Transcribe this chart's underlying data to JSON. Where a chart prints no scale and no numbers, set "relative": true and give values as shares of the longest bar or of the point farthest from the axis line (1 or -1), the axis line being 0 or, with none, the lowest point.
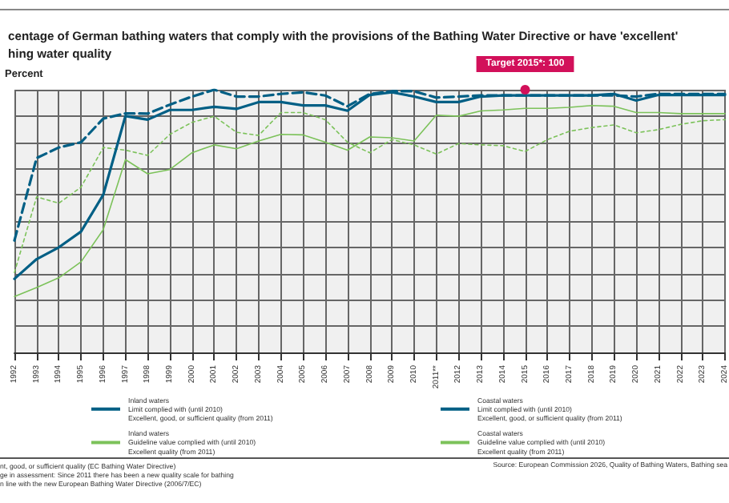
{
  "chart_data": {
    "type": "line",
    "relative": true,
    "title": "centage of German bathing waters that comply with the provisions of the Bathing Water Directive or have 'excellent'\nhing water quality",
    "ylabel": "Percent",
    "categories": [
      "1992",
      "1993",
      "1994",
      "1995",
      "1996",
      "1997",
      "1998",
      "1999",
      "2000",
      "2001",
      "2002",
      "2003",
      "2004",
      "2005",
      "2006",
      "2007",
      "2008",
      "2009",
      "2010",
      "2011**",
      "2012",
      "2013",
      "2014",
      "2015",
      "2016",
      "2017",
      "2018",
      "2019",
      "2020",
      "2021",
      "2022",
      "2023",
      "2024"
    ],
    "series": [
      {
        "name": "Inland waters\nLimit complied with (until 2010)\nExcellent, good, or sufficient quality (from 2011)",
        "color": "#005f85",
        "line_style": "solid",
        "values": [
          0.28,
          0.355,
          0.4,
          0.46,
          0.6,
          0.9,
          0.886,
          0.923,
          0.923,
          0.935,
          0.927,
          0.953,
          0.953,
          0.94,
          0.94,
          0.92,
          0.98,
          0.99,
          0.974,
          0.953,
          0.953,
          0.974,
          0.978,
          0.978,
          0.978,
          0.978,
          0.978,
          0.984,
          0.959,
          0.98,
          0.98,
          0.98,
          0.98
        ]
      },
      {
        "name": "Coastal waters\nLimit complied with (until 2010)\nExcellent, good, or sufficient quality (from 2011)",
        "color": "#005f85",
        "line_style": "dashed",
        "values": [
          0.426,
          0.74,
          0.78,
          0.8,
          0.89,
          0.91,
          0.909,
          0.943,
          0.974,
          1.0,
          0.974,
          0.974,
          0.984,
          0.99,
          0.978,
          0.937,
          0.984,
          0.994,
          0.994,
          0.97,
          0.974,
          0.978,
          0.978,
          0.978,
          0.978,
          0.978,
          0.978,
          0.978,
          0.974,
          0.984,
          0.984,
          0.984,
          0.984
        ]
      },
      {
        "name": "Inland waters\nGuideline value complied with (until 2010)\nExcellent quality (from 2011)",
        "color": "#7cc25a",
        "line_style": "solid",
        "values": [
          0.213,
          0.247,
          0.284,
          0.345,
          0.467,
          0.734,
          0.68,
          0.696,
          0.76,
          0.79,
          0.775,
          0.805,
          0.83,
          0.828,
          0.8,
          0.77,
          0.82,
          0.817,
          0.805,
          0.903,
          0.899,
          0.919,
          0.923,
          0.929,
          0.929,
          0.933,
          0.94,
          0.937,
          0.913,
          0.913,
          0.909,
          0.909,
          0.909
        ]
      },
      {
        "name": "Coastal waters\nGuideline value complied with (until 2010)\nExcellent quality (from 2011)",
        "color": "#7cc25a",
        "line_style": "dotted",
        "values": [
          0.304,
          0.592,
          0.568,
          0.629,
          0.78,
          0.77,
          0.75,
          0.83,
          0.876,
          0.899,
          0.838,
          0.826,
          0.913,
          0.913,
          0.886,
          0.8,
          0.76,
          0.81,
          0.79,
          0.755,
          0.795,
          0.79,
          0.787,
          0.765,
          0.81,
          0.842,
          0.856,
          0.866,
          0.836,
          0.848,
          0.868,
          0.882,
          0.886
        ]
      }
    ],
    "annotations": [
      {
        "text": "Target 2015*: 100",
        "x": "2015",
        "y": 1
      },
      "nt, good, or sufficient quality (EC Bathing Water Directive)\nge in assessment: Since 2011 there has been a new quality scale for bathing\nn line with the new European Bathing Water Directive (2006/7/EC)",
      "Source: European Commission 2026, Quality of Bathing Waters, Bathing sea"
    ],
    "grid": true,
    "legend": "bottom",
    "marker": "none"
  }
}
